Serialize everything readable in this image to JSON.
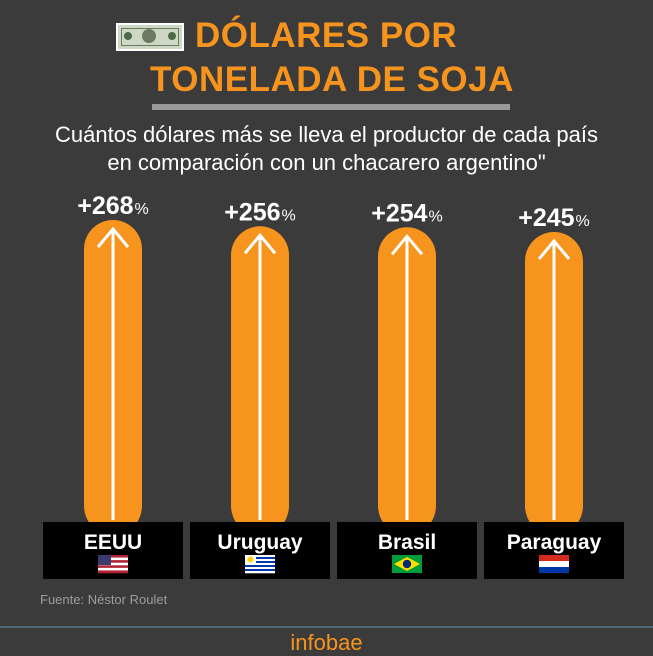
{
  "header": {
    "title_line1": "DÓLARES POR",
    "title_line2": "TONELADA DE SOJA",
    "subtitle_line1": "Cuántos dólares más se lleva el productor de cada país",
    "subtitle_line2": "en comparación con un chacarero argentino\""
  },
  "chart_data": {
    "type": "bar",
    "title": "DÓLARES POR TONELADA DE SOJA",
    "unit": "%",
    "categories": [
      "EEUU",
      "Uruguay",
      "Brasil",
      "Paraguay"
    ],
    "values": [
      268,
      256,
      254,
      245
    ],
    "value_labels": [
      "+268",
      "+256",
      "+254",
      "+245"
    ],
    "flags": [
      "usa-flag-icon",
      "uruguay-flag-icon",
      "brazil-flag-icon",
      "paraguay-flag-icon"
    ],
    "ylim": [
      0,
      268
    ],
    "grid": false,
    "legend": "none",
    "colors": {
      "bar": "#f7941d",
      "label_box": "#000000",
      "text": "#ffffff",
      "background": "#3b3b3b"
    }
  },
  "footer": {
    "source": "Fuente: Néstor Roulet",
    "brand": "infobae"
  }
}
